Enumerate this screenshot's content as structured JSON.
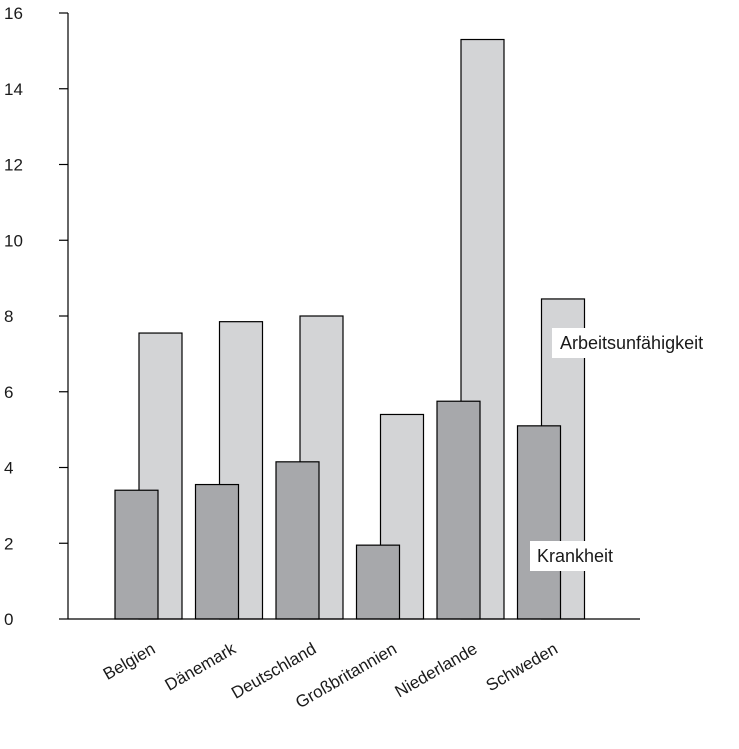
{
  "chart_data": {
    "type": "bar",
    "title": "",
    "xlabel": "",
    "ylabel": "",
    "ylim": [
      0,
      16
    ],
    "yticks": [
      0,
      2,
      4,
      6,
      8,
      10,
      12,
      14,
      16
    ],
    "grid": false,
    "legend": "none",
    "categories": [
      "Belgien",
      "Dänemark",
      "Deutschland",
      "Großbritannien",
      "Niederlande",
      "Schweden"
    ],
    "series": [
      {
        "name": "Krankheit",
        "values": [
          3.4,
          3.55,
          4.15,
          1.95,
          5.75,
          5.1
        ],
        "color": "#a7a8ab"
      },
      {
        "name": "Arbeitsunfähigkeit",
        "values": [
          7.55,
          7.85,
          8.0,
          5.4,
          15.3,
          8.45
        ],
        "color": "#d3d4d6"
      }
    ],
    "annotations": [
      {
        "text": "Arbeitsunfähigkeit",
        "series": 1
      },
      {
        "text": "Krankheit",
        "series": 0
      }
    ]
  }
}
